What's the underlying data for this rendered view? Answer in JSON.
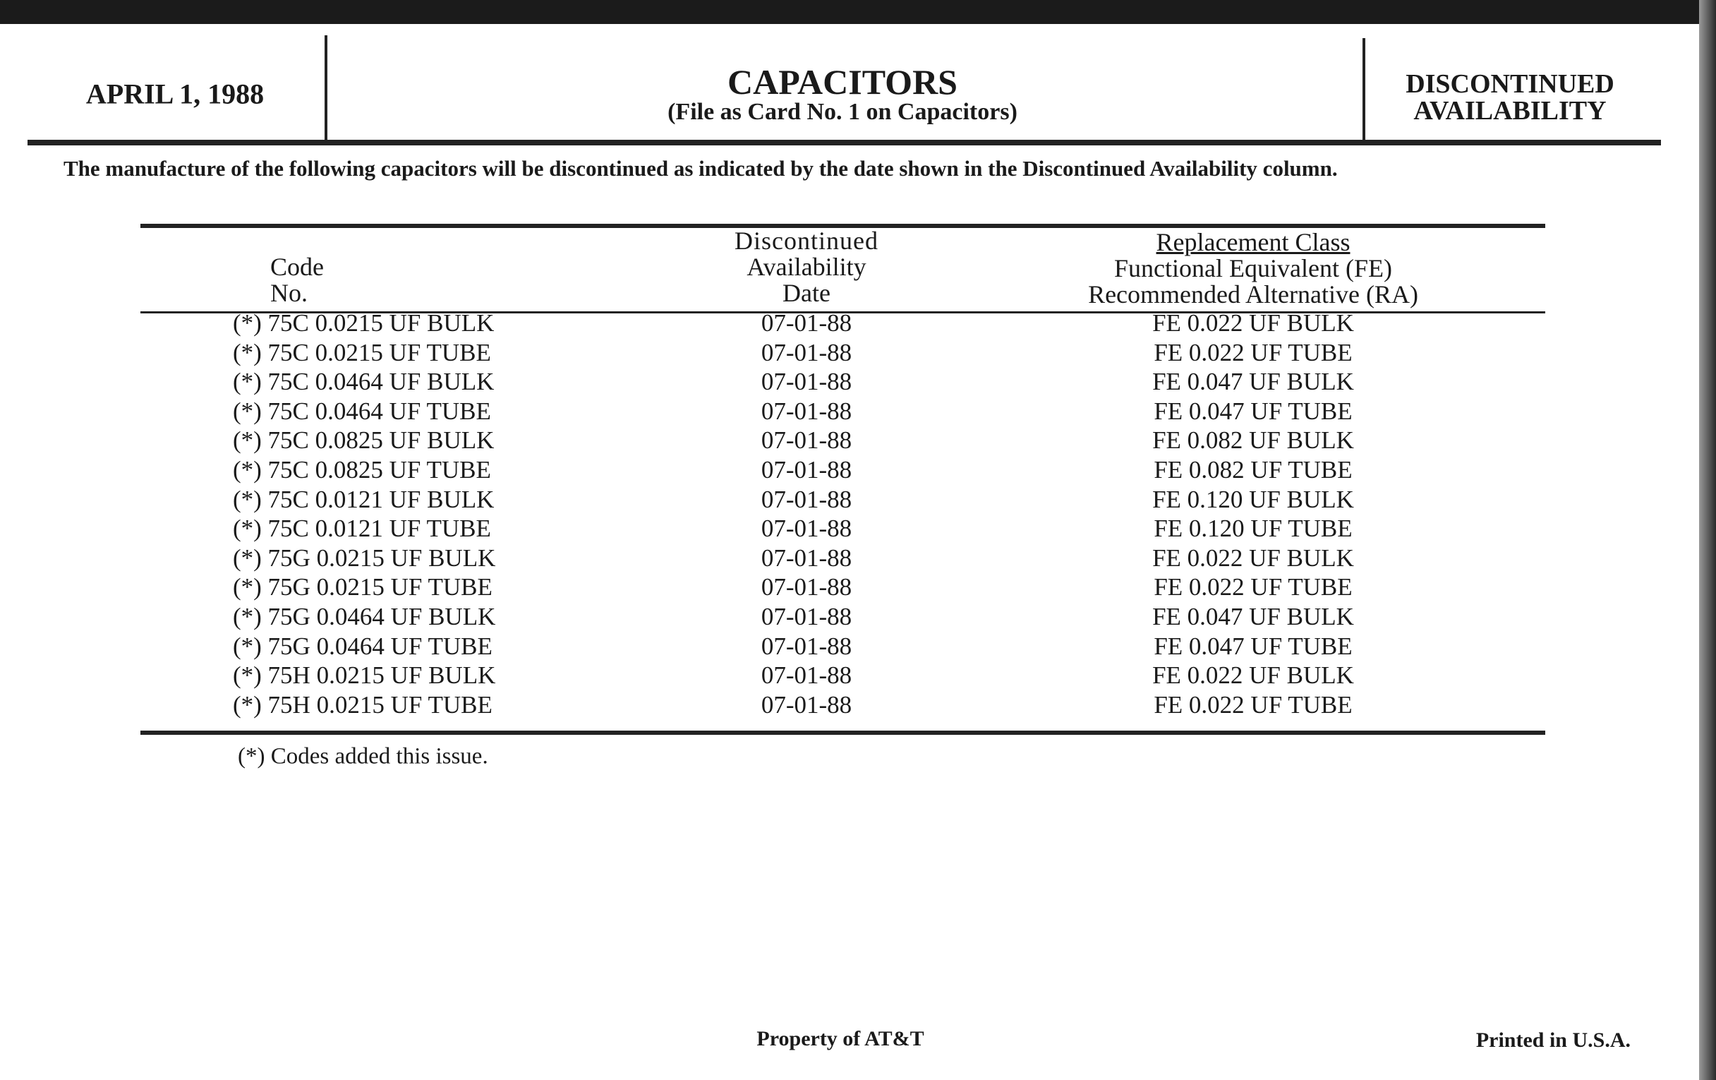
{
  "header": {
    "date": "APRIL 1, 1988",
    "title": "CAPACITORS",
    "subtitle": "(File as Card No. 1 on Capacitors)",
    "status_line1": "DISCONTINUED",
    "status_line2": "AVAILABILITY"
  },
  "intro": "The manufacture of the following capacitors will be discontinued as indicated by the date shown in the Discontinued Availability column.",
  "table": {
    "columns": {
      "code": [
        "Code",
        "No."
      ],
      "date": [
        "Discontinued",
        "Availability",
        "Date"
      ],
      "replacement": [
        "Replacement Class",
        "Functional Equivalent (FE)",
        "Recommended Alternative (RA)"
      ]
    },
    "rows": [
      {
        "code": "(*) 75C 0.0215 UF BULK",
        "date": "07-01-88",
        "replacement": "FE 0.022 UF BULK"
      },
      {
        "code": "(*) 75C 0.0215 UF TUBE",
        "date": "07-01-88",
        "replacement": "FE 0.022 UF TUBE"
      },
      {
        "code": "(*) 75C 0.0464 UF BULK",
        "date": "07-01-88",
        "replacement": "FE 0.047 UF BULK"
      },
      {
        "code": "(*) 75C 0.0464 UF TUBE",
        "date": "07-01-88",
        "replacement": "FE 0.047 UF TUBE"
      },
      {
        "code": "(*) 75C 0.0825 UF BULK",
        "date": "07-01-88",
        "replacement": "FE 0.082 UF BULK"
      },
      {
        "code": "(*) 75C 0.0825 UF TUBE",
        "date": "07-01-88",
        "replacement": "FE 0.082 UF TUBE"
      },
      {
        "code": "(*) 75C 0.0121 UF BULK",
        "date": "07-01-88",
        "replacement": "FE 0.120 UF BULK"
      },
      {
        "code": "(*) 75C 0.0121 UF TUBE",
        "date": "07-01-88",
        "replacement": "FE 0.120 UF TUBE"
      },
      {
        "code": "(*) 75G 0.0215 UF BULK",
        "date": "07-01-88",
        "replacement": "FE 0.022 UF BULK"
      },
      {
        "code": "(*) 75G 0.0215 UF TUBE",
        "date": "07-01-88",
        "replacement": "FE 0.022 UF TUBE"
      },
      {
        "code": "(*) 75G 0.0464 UF BULK",
        "date": "07-01-88",
        "replacement": "FE 0.047 UF BULK"
      },
      {
        "code": "(*) 75G 0.0464 UF TUBE",
        "date": "07-01-88",
        "replacement": "FE 0.047 UF TUBE"
      },
      {
        "code": "(*) 75H 0.0215 UF BULK",
        "date": "07-01-88",
        "replacement": "FE 0.022 UF BULK"
      },
      {
        "code": "(*) 75H 0.0215 UF TUBE",
        "date": "07-01-88",
        "replacement": "FE 0.022 UF TUBE"
      }
    ]
  },
  "footnote": "(*)  Codes added this issue.",
  "footer": {
    "property": "Property of AT&T",
    "printed": "Printed in U.S.A."
  }
}
